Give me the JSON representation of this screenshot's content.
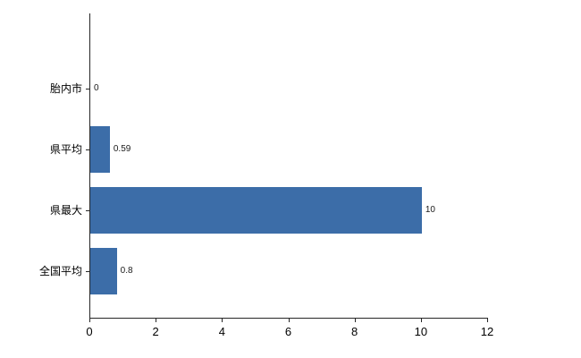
{
  "chart_data": {
    "type": "bar",
    "orientation": "horizontal",
    "title": "",
    "xlabel": "",
    "ylabel": "",
    "categories": [
      "胎内市",
      "県平均",
      "県最大",
      "全国平均"
    ],
    "values": [
      0,
      0.59,
      10,
      0.8
    ],
    "value_labels": [
      "0",
      "0.59",
      "10",
      "0.8"
    ],
    "x_ticks": [
      0,
      2,
      4,
      6,
      8,
      10,
      12
    ],
    "x_tick_labels": [
      "0",
      "2",
      "4",
      "6",
      "8",
      "10",
      "12"
    ],
    "xlim": [
      0,
      12
    ],
    "grid": false,
    "legend": false,
    "bar_color": "#3c6da8",
    "axis_color": "#262626",
    "background_color": "#ffffff"
  }
}
